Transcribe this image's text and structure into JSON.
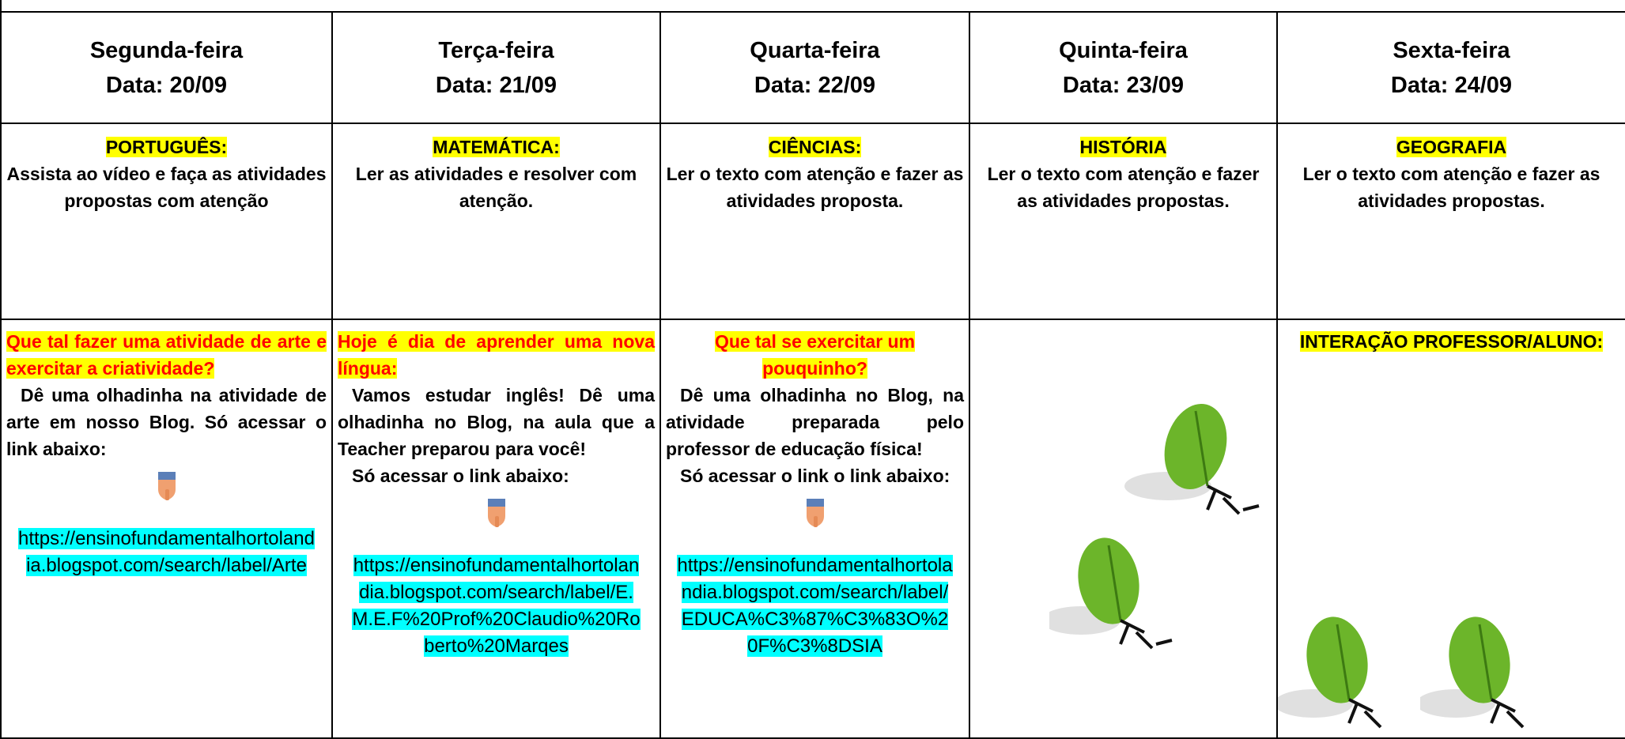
{
  "table": {
    "days": [
      {
        "day": "Segunda-feira",
        "date": "Data: 20/09"
      },
      {
        "day": "Terça-feira",
        "date": "Data: 21/09"
      },
      {
        "day": "Quarta-feira",
        "date": "Data: 22/09"
      },
      {
        "day": "Quinta-feira",
        "date": "Data: 23/09"
      },
      {
        "day": "Sexta-feira",
        "date": "Data: 24/09"
      }
    ],
    "subjects": [
      {
        "name": "PORTUGUÊS:",
        "text": "Assista ao vídeo e  faça as atividades propostas com atenção"
      },
      {
        "name": "MATEMÁTICA:",
        "text": "Ler as atividades e resolver com atenção."
      },
      {
        "name": "CIÊNCIAS:",
        "text": "Ler o texto com atenção e fazer as atividades proposta."
      },
      {
        "name": "HISTÓRIA",
        "text": "Ler o texto com atenção e fazer as atividades propostas."
      },
      {
        "name": "GEOGRAFIA",
        "text": "Ler o texto com atenção e fazer as atividades propostas."
      }
    ],
    "activities": [
      {
        "heading": "Que tal fazer uma atividade de arte e exercitar a criatividade?",
        "paragraphs": [
          "Dê uma olhadinha na atividade de arte em nosso Blog. Só acessar o link abaixo:"
        ],
        "link": "https://ensinofundamentalhortolandia.blogspot.com/search/label/Arte"
      },
      {
        "heading": "Hoje é dia de aprender uma nova língua:",
        "paragraphs": [
          "Vamos estudar inglês! Dê uma olhadinha no Blog, na aula que a Teacher preparou para você!",
          "Só acessar o link abaixo:"
        ],
        "link": "https://ensinofundamentalhortolandia.blogspot.com/search/label/E.M.E.F%20Prof%20Claudio%20Roberto%20Marqes"
      },
      {
        "heading": "Que tal se exercitar um pouquinho?",
        "paragraphs": [
          "Dê uma olhadinha no Blog, na atividade preparada pelo professor de educação física!",
          "Só acessar o link o link abaixo:"
        ],
        "link": "https://ensinofundamentalhortolandia.blogspot.com/search/label/EDUCA%C3%87%C3%83O%20F%C3%8DSIA"
      }
    ],
    "interaction": "INTERAÇÃO PROFESSOR/ALUNO:"
  }
}
